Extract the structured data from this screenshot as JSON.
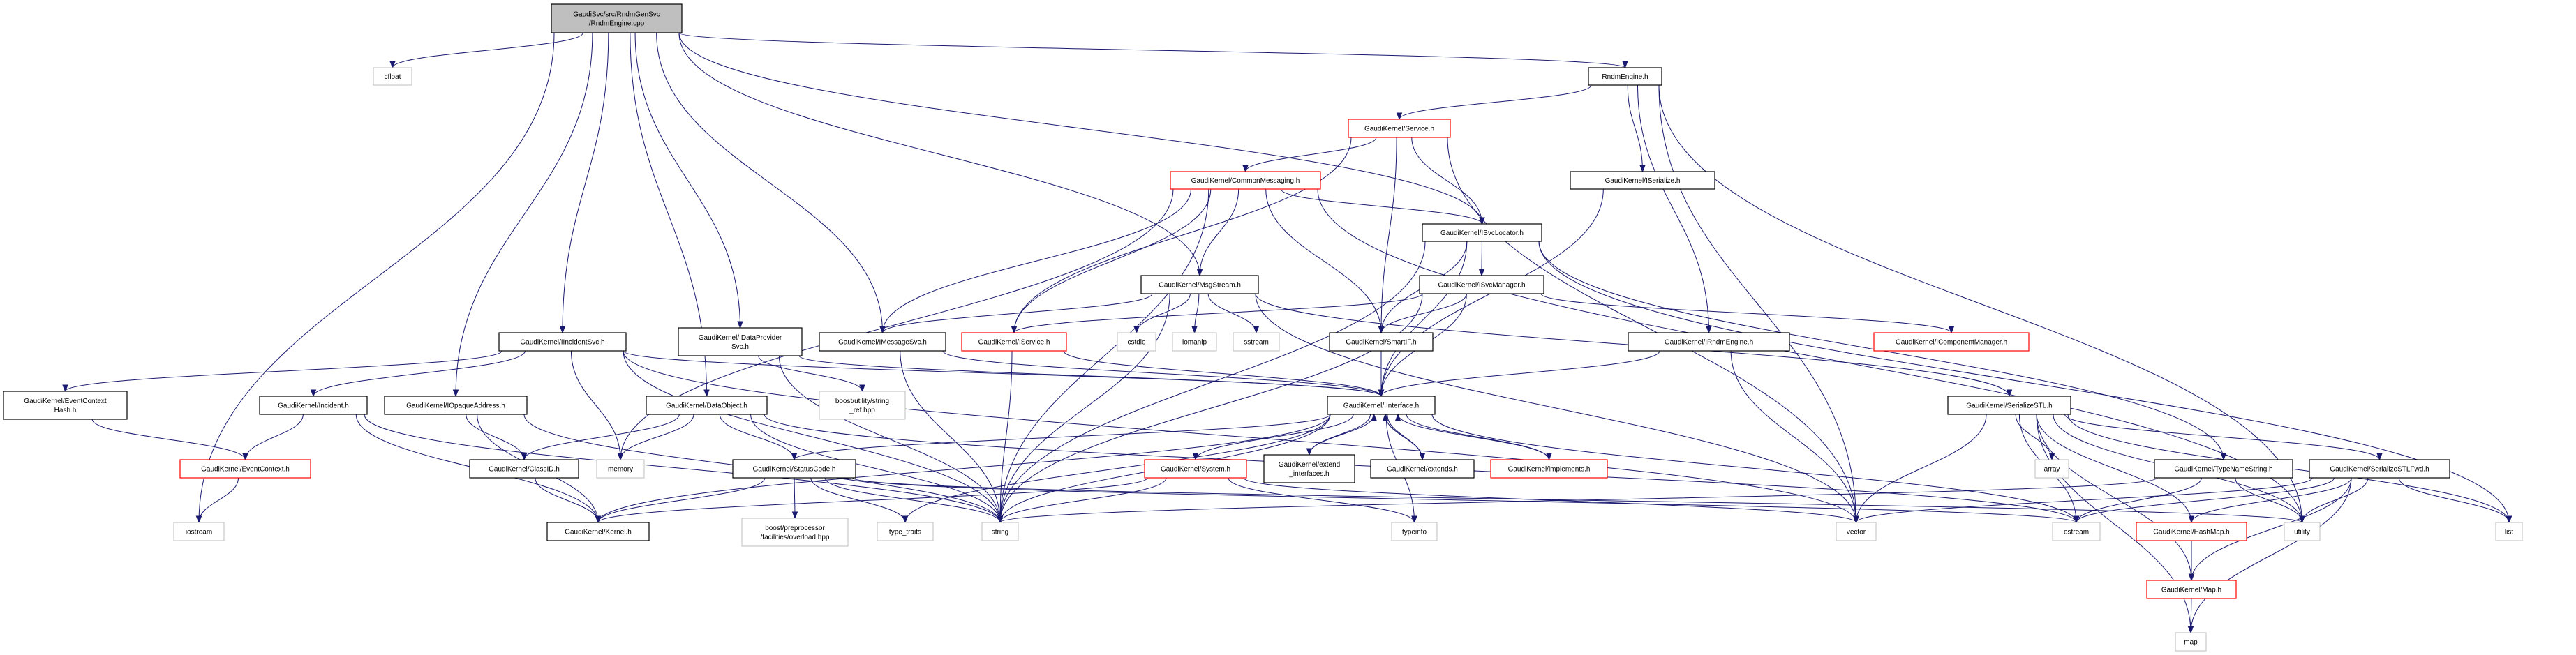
{
  "colors": {
    "edge": "#191970",
    "root_fill": "#bfbfbf",
    "node_border": "#000000",
    "missing_border": "#ff0000",
    "external_border": "#bfbfbf"
  },
  "nodes": [
    {
      "id": "root",
      "lines": [
        "GaudiSvc/src/RndmGenSvc",
        "/RndmEngine.cpp"
      ],
      "kind": "root"
    },
    {
      "id": "cfloat",
      "lines": [
        "cfloat"
      ],
      "kind": "external"
    },
    {
      "id": "RndmEngine",
      "lines": [
        "RndmEngine.h"
      ],
      "kind": "normal"
    },
    {
      "id": "Service",
      "lines": [
        "GaudiKernel/Service.h"
      ],
      "kind": "red"
    },
    {
      "id": "CommonMessaging",
      "lines": [
        "GaudiKernel/CommonMessaging.h"
      ],
      "kind": "red"
    },
    {
      "id": "ISerialize",
      "lines": [
        "GaudiKernel/ISerialize.h"
      ],
      "kind": "normal"
    },
    {
      "id": "ISvcLocator",
      "lines": [
        "GaudiKernel/ISvcLocator.h"
      ],
      "kind": "normal"
    },
    {
      "id": "MsgStream",
      "lines": [
        "GaudiKernel/MsgStream.h"
      ],
      "kind": "normal"
    },
    {
      "id": "ISvcManager",
      "lines": [
        "GaudiKernel/ISvcManager.h"
      ],
      "kind": "normal"
    },
    {
      "id": "IIncidentSvc",
      "lines": [
        "GaudiKernel/IIncidentSvc.h"
      ],
      "kind": "normal"
    },
    {
      "id": "IDataProviderSvc",
      "lines": [
        "GaudiKernel/IDataProvider",
        "Svc.h"
      ],
      "kind": "normal"
    },
    {
      "id": "IMessageSvc",
      "lines": [
        "GaudiKernel/IMessageSvc.h"
      ],
      "kind": "normal"
    },
    {
      "id": "IService",
      "lines": [
        "GaudiKernel/IService.h"
      ],
      "kind": "red"
    },
    {
      "id": "cstdio",
      "lines": [
        "cstdio"
      ],
      "kind": "external"
    },
    {
      "id": "iomanip",
      "lines": [
        "iomanip"
      ],
      "kind": "external"
    },
    {
      "id": "sstream",
      "lines": [
        "sstream"
      ],
      "kind": "external"
    },
    {
      "id": "SmartIF",
      "lines": [
        "GaudiKernel/SmartIF.h"
      ],
      "kind": "normal"
    },
    {
      "id": "IRndmEngine",
      "lines": [
        "GaudiKernel/IRndmEngine.h"
      ],
      "kind": "normal"
    },
    {
      "id": "IComponentManager",
      "lines": [
        "GaudiKernel/IComponentManager.h"
      ],
      "kind": "red"
    },
    {
      "id": "EventContextHash",
      "lines": [
        "GaudiKernel/EventContext",
        "Hash.h"
      ],
      "kind": "normal"
    },
    {
      "id": "Incident",
      "lines": [
        "GaudiKernel/Incident.h"
      ],
      "kind": "normal"
    },
    {
      "id": "IOpaqueAddress",
      "lines": [
        "GaudiKernel/IOpaqueAddress.h"
      ],
      "kind": "normal"
    },
    {
      "id": "DataObject",
      "lines": [
        "GaudiKernel/DataObject.h"
      ],
      "kind": "normal"
    },
    {
      "id": "string_ref",
      "lines": [
        "boost/utility/string",
        "_ref.hpp"
      ],
      "kind": "external"
    },
    {
      "id": "IInterface",
      "lines": [
        "GaudiKernel/IInterface.h"
      ],
      "kind": "normal"
    },
    {
      "id": "SerializeSTL",
      "lines": [
        "GaudiKernel/SerializeSTL.h"
      ],
      "kind": "normal"
    },
    {
      "id": "EventContext",
      "lines": [
        "GaudiKernel/EventContext.h"
      ],
      "kind": "red"
    },
    {
      "id": "ClassID",
      "lines": [
        "GaudiKernel/ClassID.h"
      ],
      "kind": "normal"
    },
    {
      "id": "memory",
      "lines": [
        "memory"
      ],
      "kind": "external"
    },
    {
      "id": "StatusCode",
      "lines": [
        "GaudiKernel/StatusCode.h"
      ],
      "kind": "normal"
    },
    {
      "id": "System",
      "lines": [
        "GaudiKernel/System.h"
      ],
      "kind": "red"
    },
    {
      "id": "extend_interfaces",
      "lines": [
        "GaudiKernel/extend",
        "_interfaces.h"
      ],
      "kind": "normal"
    },
    {
      "id": "extends",
      "lines": [
        "GaudiKernel/extends.h"
      ],
      "kind": "normal"
    },
    {
      "id": "implements",
      "lines": [
        "GaudiKernel/implements.h"
      ],
      "kind": "red"
    },
    {
      "id": "array",
      "lines": [
        "array"
      ],
      "kind": "external"
    },
    {
      "id": "TypeNameString",
      "lines": [
        "GaudiKernel/TypeNameString.h"
      ],
      "kind": "normal"
    },
    {
      "id": "SerializeSTLFwd",
      "lines": [
        "GaudiKernel/SerializeSTLFwd.h"
      ],
      "kind": "normal"
    },
    {
      "id": "iostream",
      "lines": [
        "iostream"
      ],
      "kind": "external"
    },
    {
      "id": "Kernel",
      "lines": [
        "GaudiKernel/Kernel.h"
      ],
      "kind": "normal"
    },
    {
      "id": "overload",
      "lines": [
        "boost/preprocessor",
        "/facilities/overload.hpp"
      ],
      "kind": "external"
    },
    {
      "id": "type_traits",
      "lines": [
        "type_traits"
      ],
      "kind": "external"
    },
    {
      "id": "string",
      "lines": [
        "string"
      ],
      "kind": "external"
    },
    {
      "id": "typeinfo",
      "lines": [
        "typeinfo"
      ],
      "kind": "external"
    },
    {
      "id": "vector",
      "lines": [
        "vector"
      ],
      "kind": "external"
    },
    {
      "id": "ostream",
      "lines": [
        "ostream"
      ],
      "kind": "external"
    },
    {
      "id": "HashMap",
      "lines": [
        "GaudiKernel/HashMap.h"
      ],
      "kind": "red"
    },
    {
      "id": "utility",
      "lines": [
        "utility"
      ],
      "kind": "external"
    },
    {
      "id": "list",
      "lines": [
        "list"
      ],
      "kind": "external"
    },
    {
      "id": "Map",
      "lines": [
        "GaudiKernel/Map.h"
      ],
      "kind": "red"
    },
    {
      "id": "map",
      "lines": [
        "map"
      ],
      "kind": "external"
    }
  ],
  "edges": [
    [
      "root",
      "cfloat"
    ],
    [
      "root",
      "RndmEngine"
    ],
    [
      "root",
      "ISvcLocator"
    ],
    [
      "root",
      "MsgStream"
    ],
    [
      "root",
      "IMessageSvc"
    ],
    [
      "root",
      "IIncidentSvc"
    ],
    [
      "root",
      "IDataProviderSvc"
    ],
    [
      "root",
      "IOpaqueAddress"
    ],
    [
      "root",
      "DataObject"
    ],
    [
      "root",
      "iostream"
    ],
    [
      "RndmEngine",
      "Service"
    ],
    [
      "RndmEngine",
      "ISerialize"
    ],
    [
      "RndmEngine",
      "IRndmEngine"
    ],
    [
      "RndmEngine",
      "vector"
    ],
    [
      "RndmEngine",
      "utility"
    ],
    [
      "Service",
      "CommonMessaging"
    ],
    [
      "Service",
      "IService"
    ],
    [
      "Service",
      "SmartIF"
    ],
    [
      "Service",
      "ISvcLocator"
    ],
    [
      "Service",
      "vector"
    ],
    [
      "CommonMessaging",
      "IMessageSvc"
    ],
    [
      "CommonMessaging",
      "IService"
    ],
    [
      "CommonMessaging",
      "MsgStream"
    ],
    [
      "CommonMessaging",
      "SmartIF"
    ],
    [
      "CommonMessaging",
      "ISvcLocator"
    ],
    [
      "CommonMessaging",
      "memory"
    ],
    [
      "CommonMessaging",
      "utility"
    ],
    [
      "CommonMessaging",
      "string"
    ],
    [
      "ISerialize",
      "IInterface"
    ],
    [
      "ISvcLocator",
      "SmartIF"
    ],
    [
      "ISvcLocator",
      "IInterface"
    ],
    [
      "ISvcLocator",
      "ISvcManager"
    ],
    [
      "ISvcLocator",
      "string"
    ],
    [
      "ISvcLocator",
      "TypeNameString"
    ],
    [
      "ISvcLocator",
      "list"
    ],
    [
      "MsgStream",
      "IMessageSvc"
    ],
    [
      "MsgStream",
      "cstdio"
    ],
    [
      "MsgStream",
      "iomanip"
    ],
    [
      "MsgStream",
      "sstream"
    ],
    [
      "MsgStream",
      "string"
    ],
    [
      "MsgStream",
      "vector"
    ],
    [
      "MsgStream",
      "SerializeSTL"
    ],
    [
      "ISvcManager",
      "IService"
    ],
    [
      "ISvcManager",
      "SmartIF"
    ],
    [
      "ISvcManager",
      "IInterface"
    ],
    [
      "ISvcManager",
      "IComponentManager"
    ],
    [
      "ISvcManager",
      "string"
    ],
    [
      "IMessageSvc",
      "IInterface"
    ],
    [
      "IMessageSvc",
      "string"
    ],
    [
      "IService",
      "string"
    ],
    [
      "IService",
      "IInterface"
    ],
    [
      "SmartIF",
      "IInterface"
    ],
    [
      "IRndmEngine",
      "IInterface"
    ],
    [
      "IRndmEngine",
      "vector"
    ],
    [
      "IIncidentSvc",
      "EventContextHash"
    ],
    [
      "IIncidentSvc",
      "Incident"
    ],
    [
      "IIncidentSvc",
      "memory"
    ],
    [
      "IIncidentSvc",
      "IInterface"
    ],
    [
      "IIncidentSvc",
      "string"
    ],
    [
      "IIncidentSvc",
      "vector"
    ],
    [
      "IDataProviderSvc",
      "string_ref"
    ],
    [
      "IDataProviderSvc",
      "IInterface"
    ],
    [
      "IDataProviderSvc",
      "string"
    ],
    [
      "Incident",
      "EventContext"
    ],
    [
      "Incident",
      "Kernel"
    ],
    [
      "Incident",
      "string"
    ],
    [
      "IOpaqueAddress",
      "ClassID"
    ],
    [
      "IOpaqueAddress",
      "Kernel"
    ],
    [
      "IOpaqueAddress",
      "string"
    ],
    [
      "DataObject",
      "ClassID"
    ],
    [
      "DataObject",
      "memory"
    ],
    [
      "DataObject",
      "StatusCode"
    ],
    [
      "DataObject",
      "string"
    ],
    [
      "DataObject",
      "ostream"
    ],
    [
      "EventContextHash",
      "EventContext"
    ],
    [
      "EventContext",
      "iostream"
    ],
    [
      "ClassID",
      "Kernel"
    ],
    [
      "StatusCode",
      "Kernel"
    ],
    [
      "StatusCode",
      "overload"
    ],
    [
      "StatusCode",
      "type_traits"
    ],
    [
      "StatusCode",
      "string"
    ],
    [
      "StatusCode",
      "ostream"
    ],
    [
      "StatusCode",
      "utility"
    ],
    [
      "IInterface",
      "Kernel"
    ],
    [
      "IInterface",
      "StatusCode"
    ],
    [
      "IInterface",
      "System"
    ],
    [
      "IInterface",
      "extend_interfaces"
    ],
    [
      "IInterface",
      "extends"
    ],
    [
      "IInterface",
      "implements"
    ],
    [
      "IInterface",
      "string"
    ],
    [
      "IInterface",
      "typeinfo"
    ],
    [
      "IInterface",
      "ostream"
    ],
    [
      "IInterface",
      "type_traits"
    ],
    [
      "extend_interfaces",
      "IInterface"
    ],
    [
      "extends",
      "IInterface"
    ],
    [
      "implements",
      "IInterface"
    ],
    [
      "System",
      "Kernel"
    ],
    [
      "System",
      "string"
    ],
    [
      "System",
      "typeinfo"
    ],
    [
      "System",
      "vector"
    ],
    [
      "SerializeSTL",
      "vector"
    ],
    [
      "SerializeSTL",
      "array"
    ],
    [
      "SerializeSTL",
      "ostream"
    ],
    [
      "SerializeSTL",
      "HashMap"
    ],
    [
      "SerializeSTL",
      "SerializeSTLFwd"
    ],
    [
      "SerializeSTL",
      "Map"
    ],
    [
      "SerializeSTL",
      "map"
    ],
    [
      "SerializeSTL",
      "utility"
    ],
    [
      "SerializeSTL",
      "list"
    ],
    [
      "TypeNameString",
      "string"
    ],
    [
      "TypeNameString",
      "ostream"
    ],
    [
      "TypeNameString",
      "utility"
    ],
    [
      "SerializeSTLFwd",
      "vector"
    ],
    [
      "SerializeSTLFwd",
      "ostream"
    ],
    [
      "SerializeSTLFwd",
      "HashMap"
    ],
    [
      "SerializeSTLFwd",
      "utility"
    ],
    [
      "SerializeSTLFwd",
      "Map"
    ],
    [
      "SerializeSTLFwd",
      "map"
    ],
    [
      "SerializeSTLFwd",
      "list"
    ],
    [
      "HashMap",
      "Map"
    ],
    [
      "Map",
      "map"
    ]
  ]
}
